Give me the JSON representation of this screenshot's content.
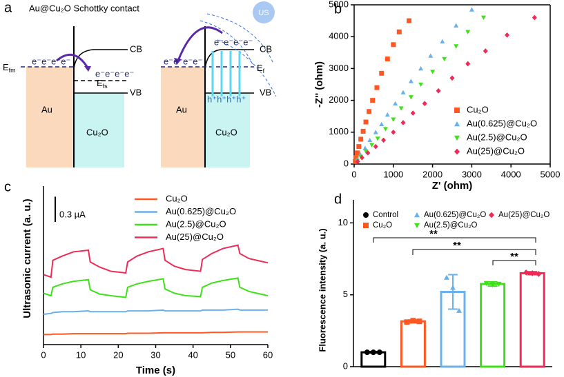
{
  "diagram": {
    "panel_label": "a",
    "title": "Au@Cu₂O Schottky contact",
    "left": {
      "metal": "Au",
      "semiconductor": "Cu₂O",
      "cb": "CB",
      "vb": "VB",
      "efm": {
        "main": "E",
        "sub": "fm"
      },
      "efs": {
        "main": "E",
        "sub": "fs"
      },
      "electrons_metal": "e⁻e⁻e⁻e⁻",
      "electrons_semi": "e⁻e⁻e⁻e⁻"
    },
    "right": {
      "metal": "Au",
      "semiconductor": "Cu₂O",
      "cb": "CB",
      "vb": "VB",
      "ef": {
        "main": "E",
        "sub": "f"
      },
      "electrons_metal": "e⁻e⁻e⁻e⁻",
      "electrons_semi": "e⁻e⁻e⁻e⁻",
      "holes": "h⁺h⁺h⁺h⁺",
      "us": "US"
    }
  },
  "chart_data": [
    {
      "type": "scatter",
      "panel_label": "b",
      "x_label": "Z' (ohm)",
      "y_label": "-Z'' (ohm)",
      "xlim": [
        0,
        5000
      ],
      "ylim": [
        0,
        5000
      ],
      "xticks": [
        0,
        1000,
        2000,
        3000,
        4000,
        5000
      ],
      "yticks": [
        0,
        1000,
        2000,
        3000,
        4000,
        5000
      ],
      "series": [
        {
          "name": "Cu₂O",
          "color": "#ff5722",
          "marker": "square",
          "x": [
            30,
            50,
            80,
            120,
            170,
            230,
            300,
            380,
            470,
            580,
            700,
            850,
            1000,
            1150,
            1400
          ],
          "values": [
            80,
            200,
            350,
            550,
            780,
            1030,
            1320,
            1650,
            2000,
            2400,
            2850,
            3300,
            3750,
            4150,
            4500
          ]
        },
        {
          "name": "Au(0.625)@Cu₂O",
          "color": "#6ab0ea",
          "marker": "triangle",
          "x": [
            80,
            160,
            280,
            400,
            550,
            700,
            850,
            1050,
            1250,
            1450,
            1700,
            1950,
            2250,
            2600,
            3000
          ],
          "values": [
            150,
            300,
            500,
            750,
            1000,
            1250,
            1550,
            1900,
            2250,
            2600,
            3000,
            3400,
            3850,
            4350,
            4850
          ]
        },
        {
          "name": "Au(2.5)@Cu₂O",
          "color": "#3ee01a",
          "marker": "triangle-down",
          "x": [
            80,
            170,
            300,
            450,
            600,
            800,
            1000,
            1200,
            1450,
            1700,
            2000,
            2300,
            2600,
            2900,
            3300
          ],
          "values": [
            100,
            230,
            400,
            600,
            800,
            1100,
            1400,
            1750,
            2100,
            2500,
            2900,
            3300,
            3700,
            4150,
            4600
          ]
        },
        {
          "name": "Au(25)@Cu₂O",
          "color": "#ee2a55",
          "marker": "diamond",
          "x": [
            90,
            200,
            350,
            550,
            750,
            1000,
            1250,
            1500,
            1800,
            2150,
            2500,
            2900,
            3350,
            3900,
            4600
          ],
          "values": [
            80,
            200,
            350,
            550,
            750,
            1000,
            1300,
            1600,
            1900,
            2300,
            2700,
            3150,
            3550,
            4050,
            4600
          ]
        }
      ]
    },
    {
      "type": "line",
      "panel_label": "c",
      "x_label": "Time (s)",
      "y_label": "Ultrasonic current (a. u.)",
      "xlim": [
        0,
        60
      ],
      "ylim": [
        -0.08,
        1.8
      ],
      "xticks": [
        0,
        10,
        20,
        30,
        40,
        50,
        60
      ],
      "scale_bar": {
        "value": 0.3,
        "label": "0.3 µA"
      },
      "x": [
        0,
        2,
        2.5,
        5,
        8,
        12,
        12.5,
        15,
        18,
        22,
        22.5,
        25,
        28,
        32,
        32.5,
        35,
        38,
        42,
        42.5,
        45,
        48,
        52,
        52.5,
        55,
        58,
        60
      ],
      "series": [
        {
          "name": "Cu₂O",
          "color": "#ff5722",
          "values": [
            0.04,
            0.04,
            0.045,
            0.045,
            0.05,
            0.05,
            0.05,
            0.05,
            0.05,
            0.05,
            0.055,
            0.055,
            0.055,
            0.06,
            0.06,
            0.06,
            0.06,
            0.06,
            0.06,
            0.065,
            0.065,
            0.07,
            0.07,
            0.07,
            0.07,
            0.07
          ]
        },
        {
          "name": "Au(0.625)@Cu₂O",
          "color": "#6ab0ea",
          "values": [
            0.28,
            0.29,
            0.3,
            0.31,
            0.31,
            0.32,
            0.31,
            0.31,
            0.31,
            0.31,
            0.32,
            0.32,
            0.32,
            0.33,
            0.32,
            0.32,
            0.32,
            0.32,
            0.33,
            0.33,
            0.33,
            0.34,
            0.33,
            0.33,
            0.33,
            0.33
          ]
        },
        {
          "name": "Au(2.5)@Cu₂O",
          "color": "#3ee01a",
          "values": [
            0.53,
            0.5,
            0.6,
            0.64,
            0.67,
            0.69,
            0.57,
            0.52,
            0.5,
            0.48,
            0.6,
            0.64,
            0.67,
            0.7,
            0.58,
            0.53,
            0.5,
            0.49,
            0.6,
            0.65,
            0.68,
            0.71,
            0.6,
            0.55,
            0.52,
            0.5
          ]
        },
        {
          "name": "Au(25)@Cu₂O",
          "color": "#ee2a55",
          "values": [
            0.75,
            0.72,
            0.92,
            0.97,
            1.02,
            1.04,
            0.9,
            0.84,
            0.79,
            0.77,
            0.9,
            0.97,
            1.02,
            1.06,
            0.92,
            0.85,
            0.81,
            0.79,
            0.93,
            1.0,
            1.06,
            1.1,
            1.0,
            0.94,
            0.91,
            0.89
          ]
        }
      ]
    },
    {
      "type": "bar",
      "panel_label": "d",
      "y_label": "Fluorescence intensity (a. u.)",
      "ylim": [
        0,
        11.6
      ],
      "yticks": [
        0,
        5,
        10
      ],
      "categories": [
        "Control",
        "Cu₂O",
        "Au(0.625)@Cu₂O",
        "Au(2.5)@Cu₂O",
        "Au(25)@Cu₂O"
      ],
      "colors": [
        "#000000",
        "#ff5722",
        "#6ab0ea",
        "#3ee01a",
        "#ee2a55"
      ],
      "markers": [
        "circle",
        "square",
        "triangle",
        "triangle-down",
        "diamond"
      ],
      "values": [
        1.0,
        3.15,
        5.2,
        5.75,
        6.5
      ],
      "errors": [
        0.05,
        0.1,
        1.2,
        0.15,
        0.1
      ],
      "points": [
        [
          1.0,
          1.0,
          1.0
        ],
        [
          3.1,
          3.2,
          3.15
        ],
        [
          6.2,
          5.5,
          3.9
        ],
        [
          5.8,
          5.7,
          5.75
        ],
        [
          6.55,
          6.5,
          6.45
        ]
      ],
      "annotations": [
        "**",
        "**",
        "**"
      ]
    }
  ]
}
